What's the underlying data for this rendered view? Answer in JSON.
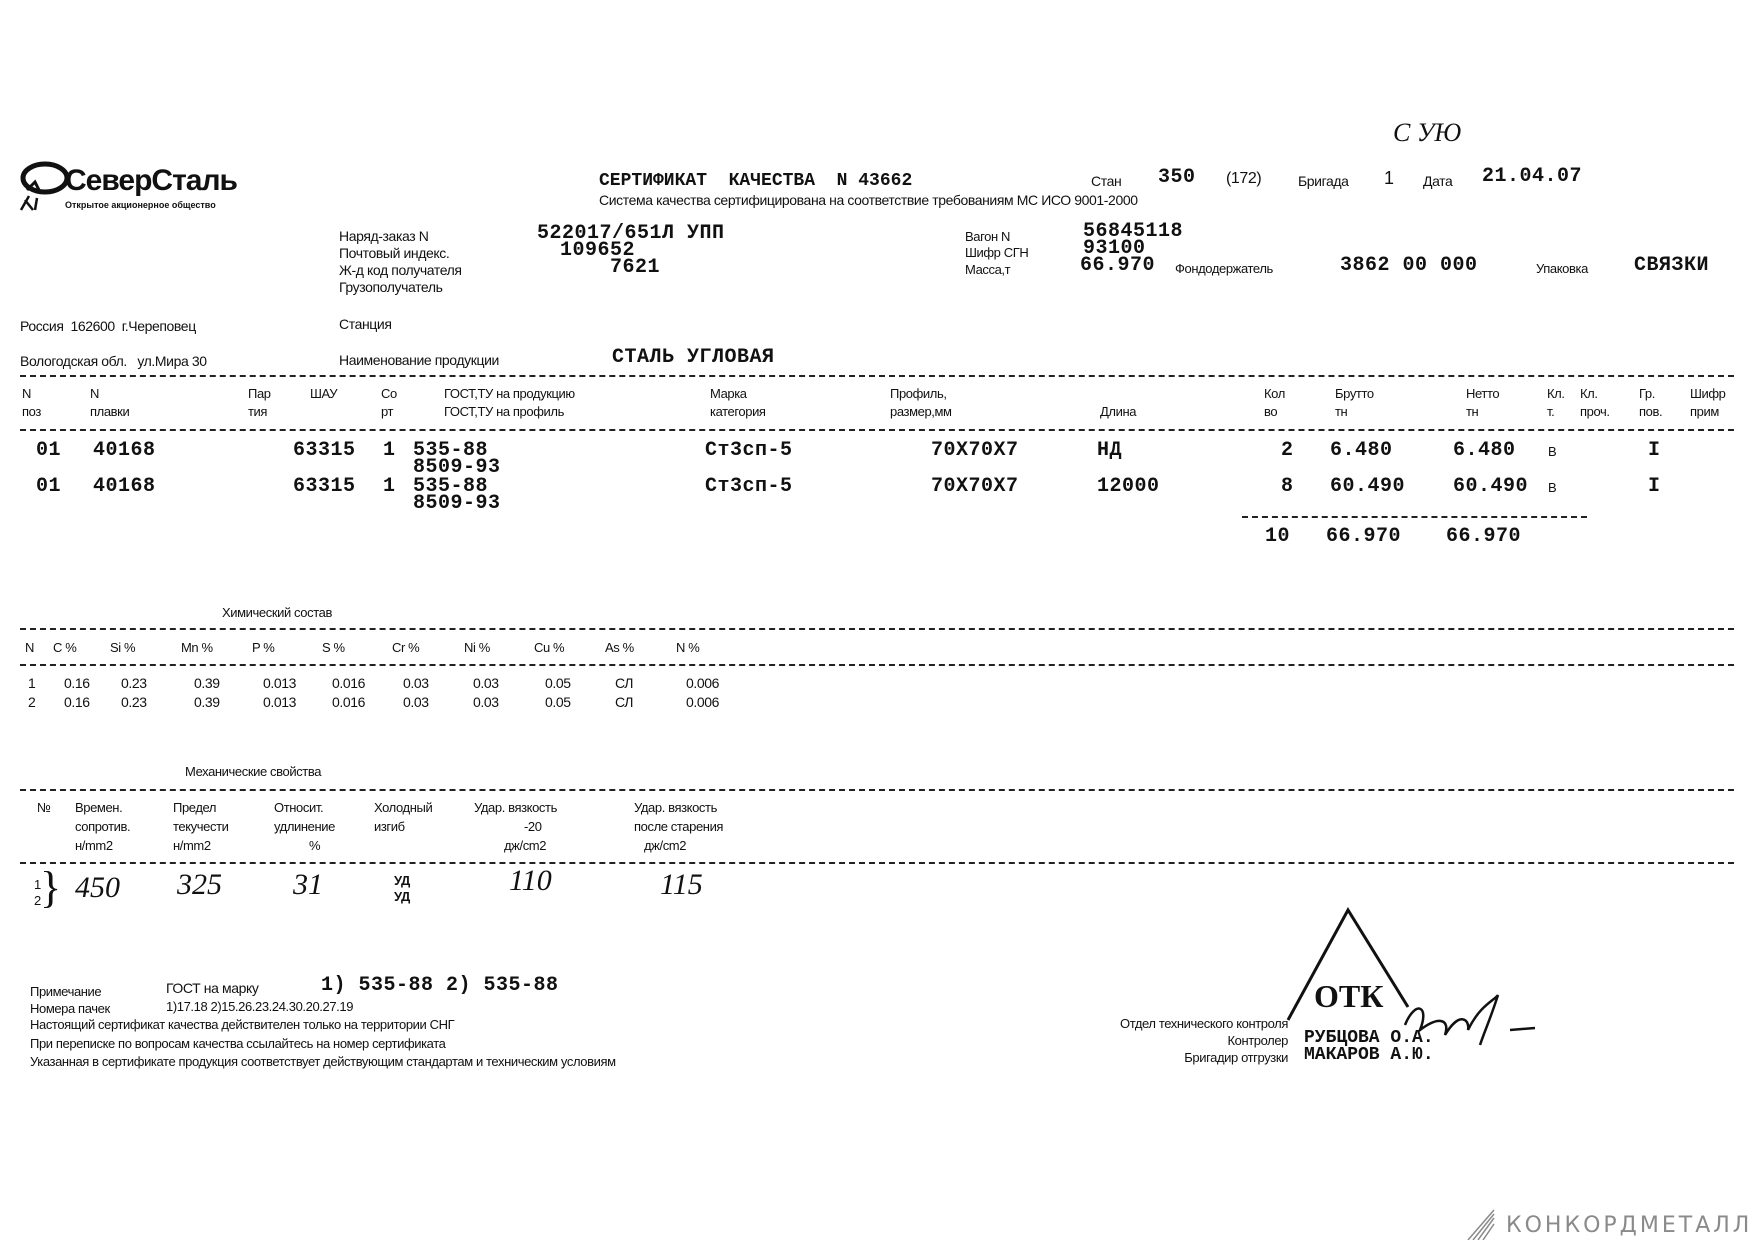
{
  "logo": {
    "name": "СеверСталь",
    "tagline": "Открытое акционерное общество"
  },
  "handwritten_top": "С УЮ",
  "header": {
    "title": "СЕРТИФИКАТ  КАЧЕСТВА  N 43662",
    "stan_label": "Стан",
    "stan_value": "350",
    "stan_sub": "(172)",
    "brigada_label": "Бригада",
    "brigada_value": "1",
    "date_label": "Дата",
    "date_value": "21.04.07",
    "subtitle": "Система качества сертифицирована на соответствие требованиям МС ИСО 9001-2000"
  },
  "order": {
    "order_label": "Наряд-заказ N",
    "order_value": "522017/651Л УПП",
    "postal_label": "Почтовый индекс.",
    "postal_value": "109652",
    "rail_label": "Ж-д код получателя",
    "rail_value": "7621",
    "consignee_label": "Грузополучатель",
    "wagon_label": "Вагон N",
    "wagon_value": "56845118",
    "sgn_label": "Шифр СГН",
    "sgn_value": "93100",
    "mass_label": "Масса,т",
    "mass_value": "66.970",
    "fund_label": "Фондодержатель",
    "fund_value": "3862 00 000",
    "pack_label": "Упаковка",
    "pack_value": "СВЯЗКИ"
  },
  "address": {
    "line1": "Россия  162600  г.Череповец",
    "line2": "Вологодская обл.   ул.Мира 30",
    "station_label": "Станция",
    "product_label": "Наименование продукции",
    "product_value": "СТАЛЬ УГЛОВАЯ"
  },
  "product_table": {
    "headers": [
      [
        "N",
        "поз"
      ],
      [
        "N",
        "плавки"
      ],
      [
        "Пар",
        "тия"
      ],
      [
        "ШАУ",
        ""
      ],
      [
        "Со",
        "рт"
      ],
      [
        "ГОСТ,ТУ на продукцию",
        "ГОСТ,ТУ на профиль"
      ],
      [
        "Марка",
        "категория"
      ],
      [
        "Профиль,",
        "размер,мм"
      ],
      [
        "",
        "Длина"
      ],
      [
        "Кол",
        "во"
      ],
      [
        "Брутто",
        "тн"
      ],
      [
        "Нетто",
        "тн"
      ],
      [
        "Кл.",
        "т."
      ],
      [
        "Кл.",
        "проч."
      ],
      [
        "Гр.",
        "пов."
      ],
      [
        "Шифр",
        "прим"
      ]
    ],
    "rows": [
      {
        "pos": "01",
        "melt": "40168",
        "shau": "63315",
        "sort": "1",
        "gost1": "535-88",
        "gost2": "8509-93",
        "grade": "Ст3сп-5",
        "profile": "70Х70Х7",
        "length": "НД",
        "qty": "2",
        "gross": "6.480",
        "net": "6.480",
        "klt": "В",
        "grpov": "I"
      },
      {
        "pos": "01",
        "melt": "40168",
        "shau": "63315",
        "sort": "1",
        "gost1": "535-88",
        "gost2": "8509-93",
        "grade": "Ст3сп-5",
        "profile": "70Х70Х7",
        "length": "12000",
        "qty": "8",
        "gross": "60.490",
        "net": "60.490",
        "klt": "В",
        "grpov": "I"
      }
    ],
    "total": {
      "qty": "10",
      "gross": "66.970",
      "net": "66.970"
    }
  },
  "chemistry": {
    "title": "Химический состав",
    "headers": [
      "N",
      "C %",
      "Si %",
      "Mn %",
      "P %",
      "S %",
      "Cr %",
      "Ni %",
      "Cu %",
      "As %",
      "N %"
    ],
    "rows": [
      [
        "1",
        "0.16",
        "0.23",
        "0.39",
        "0.013",
        "0.016",
        "0.03",
        "0.03",
        "0.05",
        "СЛ",
        "0.006"
      ],
      [
        "2",
        "0.16",
        "0.23",
        "0.39",
        "0.013",
        "0.016",
        "0.03",
        "0.03",
        "0.05",
        "СЛ",
        "0.006"
      ]
    ]
  },
  "mechanics": {
    "title": "Механические свойства",
    "headers": [
      [
        "№",
        "",
        ""
      ],
      [
        "Времен.",
        "сопротив.",
        "н/mm2"
      ],
      [
        "Предел",
        "текучести",
        "н/mm2"
      ],
      [
        "Относит.",
        "удлинение",
        "%"
      ],
      [
        "Холодный",
        "изгиб",
        ""
      ],
      [
        "Удар. вязкость",
        "-20",
        "дж/cm2"
      ],
      [
        "Удар. вязкость",
        "после старения",
        "дж/cm2"
      ]
    ],
    "row_numbers": [
      "1",
      "2"
    ],
    "values": {
      "tensile": "450",
      "yield": "325",
      "elongation": "31",
      "bend1": "УД",
      "bend2": "УД",
      "impact": "110",
      "impact_aged": "115"
    }
  },
  "notes": {
    "note_label": "Примечание",
    "note_text": "ГОСТ на марку",
    "note_value": "1) 535-88 2) 535-88",
    "bundles_label": "Номера пачек",
    "bundles_value": "1)17.18 2)15.26.23.24.30.20.27.19",
    "line1": "Настоящий сертификат качества действителен только на территории СНГ",
    "line2": "При переписке по вопросам качества ссылайтесь на номер сертификата",
    "line3": "Указанная в сертификате продукция соответствует действующим стандартам и техническим условиям"
  },
  "signatures": {
    "dept": "Отдел технического контроля",
    "controller_label": "Контролер",
    "controller_value": "РУБЦОВА О.А.",
    "foreman_label": "Бригадир отгрузки",
    "foreman_value": "МАКАРОВ А.Ю.",
    "stamp": "ОТК"
  },
  "watermark": "КОНКОРДМЕТАЛЛ"
}
